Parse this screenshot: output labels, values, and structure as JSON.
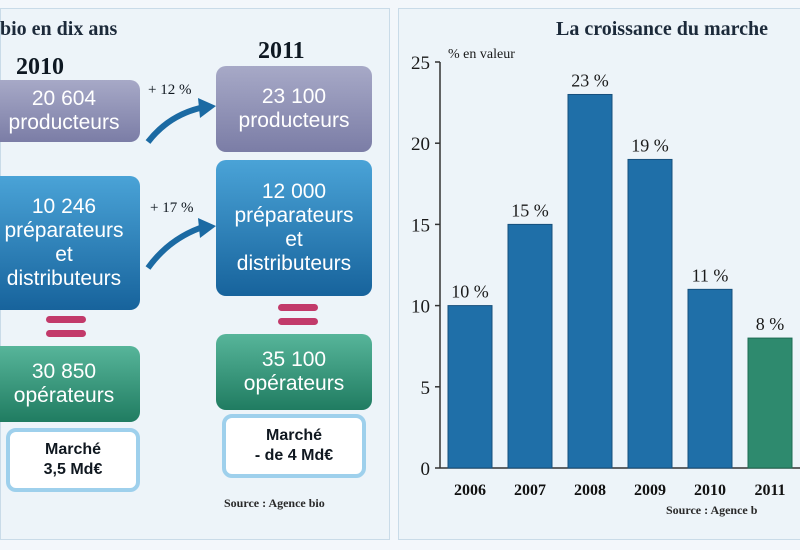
{
  "left": {
    "title": "bio en dix ans",
    "year_a": "2010",
    "year_b": "2011",
    "prod_a": [
      "20 604",
      "producteurs"
    ],
    "prod_b": [
      "23 100",
      "producteurs"
    ],
    "growth_prod": "+ 12 %",
    "prep_a": [
      "10 246",
      "préparateurs",
      "et",
      "distributeurs"
    ],
    "prep_b": [
      "12 000",
      "préparateurs",
      "et",
      "distributeurs"
    ],
    "growth_prep": "+ 17 %",
    "oper_a": [
      "30 850",
      "opérateurs"
    ],
    "oper_b": [
      "35 100",
      "opérateurs"
    ],
    "market_a": [
      "Marché",
      "3,5 Md€"
    ],
    "market_b": [
      "Marché",
      "- de 4 Md€"
    ],
    "source": "Source : Agence bio"
  },
  "colors": {
    "producteurs": "#7f81a8",
    "preparateurs": "#1f6fab",
    "operateurs": "#2a8a6c",
    "bar_blue": "#1f6fa8",
    "bar_green": "#2e8a6e",
    "equal_sign": "#c23a6a"
  },
  "chart_data": {
    "type": "bar",
    "title": "La croissance du marche",
    "ylabel": "% en valeur",
    "categories": [
      "2006",
      "2007",
      "2008",
      "2009",
      "2010",
      "2011"
    ],
    "values": [
      10,
      15,
      23,
      19,
      11,
      8
    ],
    "value_labels": [
      "10 %",
      "15 %",
      "23 %",
      "19 %",
      "11 %",
      "8 %"
    ],
    "highlight_last": true,
    "ylim": [
      0,
      25
    ],
    "yticks": [
      0,
      5,
      10,
      15,
      20,
      25
    ],
    "ytick_labels": [
      "0",
      "5",
      "10",
      "15",
      "20",
      "25"
    ],
    "grid": false,
    "source": "Source : Agence b"
  }
}
